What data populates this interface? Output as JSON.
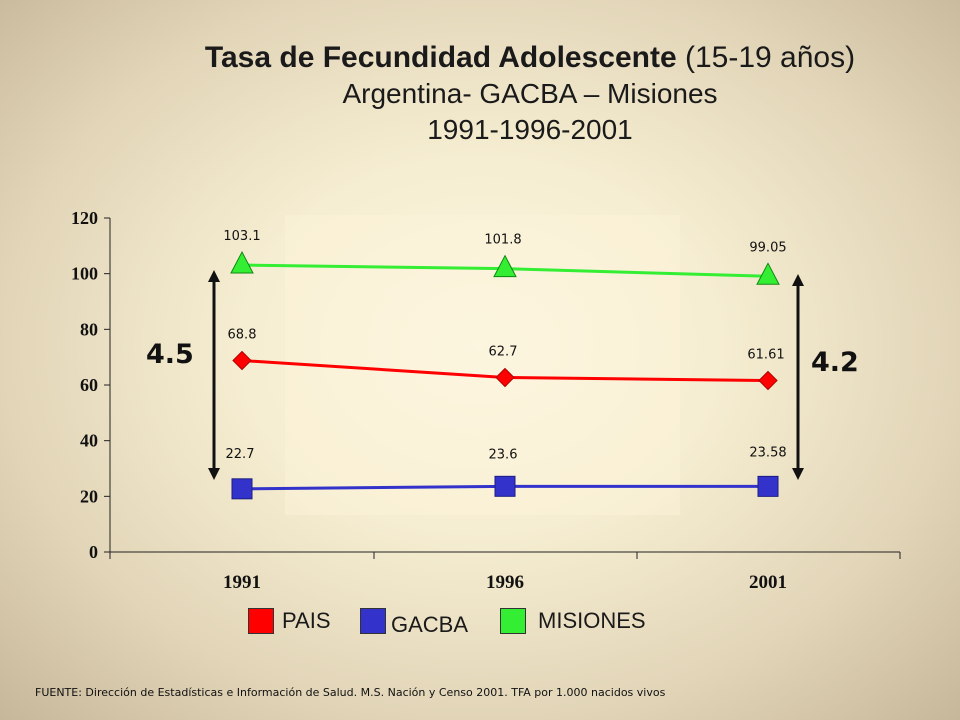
{
  "title": {
    "bold": "Tasa de Fecundidad Adolescente",
    "rest": " (15-19 años)",
    "line2": "Argentina- GACBA – Misiones",
    "line3": "1991-1996-2001"
  },
  "chart_data": {
    "type": "line",
    "categories": [
      "1991",
      "1996",
      "2001"
    ],
    "ylim": [
      0,
      120
    ],
    "yticks": [
      "0",
      "20",
      "40",
      "60",
      "80",
      "100",
      "120"
    ],
    "grid": false,
    "series": [
      {
        "name": "PAIS",
        "values": [
          68.8,
          62.7,
          61.61
        ],
        "labels": [
          "68.8",
          "62.7",
          "61.61"
        ],
        "color": "#ff0000",
        "marker": "diamond"
      },
      {
        "name": "GACBA",
        "values": [
          22.7,
          23.6,
          23.58
        ],
        "labels": [
          "22.7",
          "23.6",
          "23.58"
        ],
        "color": "#3333cc",
        "marker": "square"
      },
      {
        "name": "MISIONES",
        "values": [
          103.1,
          101.8,
          99.05
        ],
        "labels": [
          "103.1",
          "101.8",
          "99.05"
        ],
        "color": "#33ee33",
        "marker": "triangle"
      }
    ],
    "annotations": [
      {
        "text": "4.5",
        "at": "1991"
      },
      {
        "text": "4.2",
        "at": "2001"
      }
    ]
  },
  "legend": {
    "items": [
      {
        "label": "PAIS",
        "color": "#ff0000"
      },
      {
        "label": "GACBA",
        "color": "#3333cc"
      },
      {
        "label": "MISIONES",
        "color": "#33ee33"
      }
    ]
  },
  "footer": "FUENTE: Dirección de Estadísticas e Información de Salud. M.S. Nación  y  Censo 2001.  TFA por 1.000 nacidos vivos"
}
